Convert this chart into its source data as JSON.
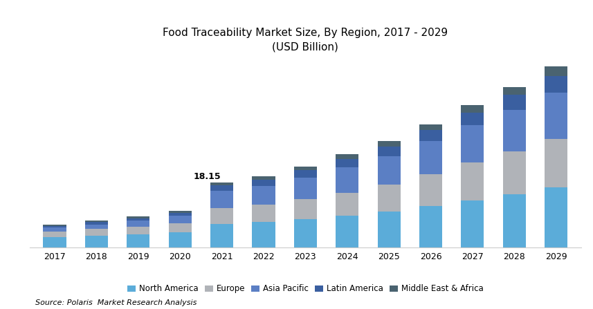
{
  "title_line1": "Food Traceability Market Size, By Region, 2017 - 2029",
  "title_line2": "(USD Billion)",
  "source": "Source: Polaris  Market Research Analysis",
  "annotation_year": 2021,
  "annotation_text": "18.15",
  "years": [
    2017,
    2018,
    2019,
    2020,
    2021,
    2022,
    2023,
    2024,
    2025,
    2026,
    2027,
    2028,
    2029
  ],
  "regions": [
    "North America",
    "Europe",
    "Asia Pacific",
    "Latin America",
    "Middle East & Africa"
  ],
  "colors": [
    "#5BACD9",
    "#B0B3B8",
    "#5B7FC4",
    "#3A5FA0",
    "#4A6370"
  ],
  "data": {
    "North America": [
      2.8,
      3.2,
      3.6,
      4.2,
      6.5,
      7.0,
      7.8,
      8.8,
      10.0,
      11.5,
      13.2,
      14.8,
      16.8
    ],
    "Europe": [
      1.6,
      1.9,
      2.2,
      2.6,
      4.5,
      4.9,
      5.6,
      6.4,
      7.5,
      9.0,
      10.5,
      12.0,
      13.5
    ],
    "Asia Pacific": [
      1.1,
      1.3,
      1.6,
      2.0,
      4.8,
      5.3,
      6.2,
      7.2,
      8.0,
      9.2,
      10.5,
      11.8,
      13.0
    ],
    "Latin America": [
      0.5,
      0.6,
      0.7,
      0.8,
      1.5,
      1.7,
      2.0,
      2.3,
      2.7,
      3.1,
      3.6,
      4.1,
      4.7
    ],
    "Middle East & Africa": [
      0.4,
      0.4,
      0.5,
      0.6,
      0.85,
      0.9,
      1.1,
      1.3,
      1.5,
      1.7,
      2.0,
      2.3,
      2.65
    ]
  },
  "ylim": [
    0,
    52
  ],
  "bar_width": 0.55,
  "bg_color": "#FFFFFF"
}
